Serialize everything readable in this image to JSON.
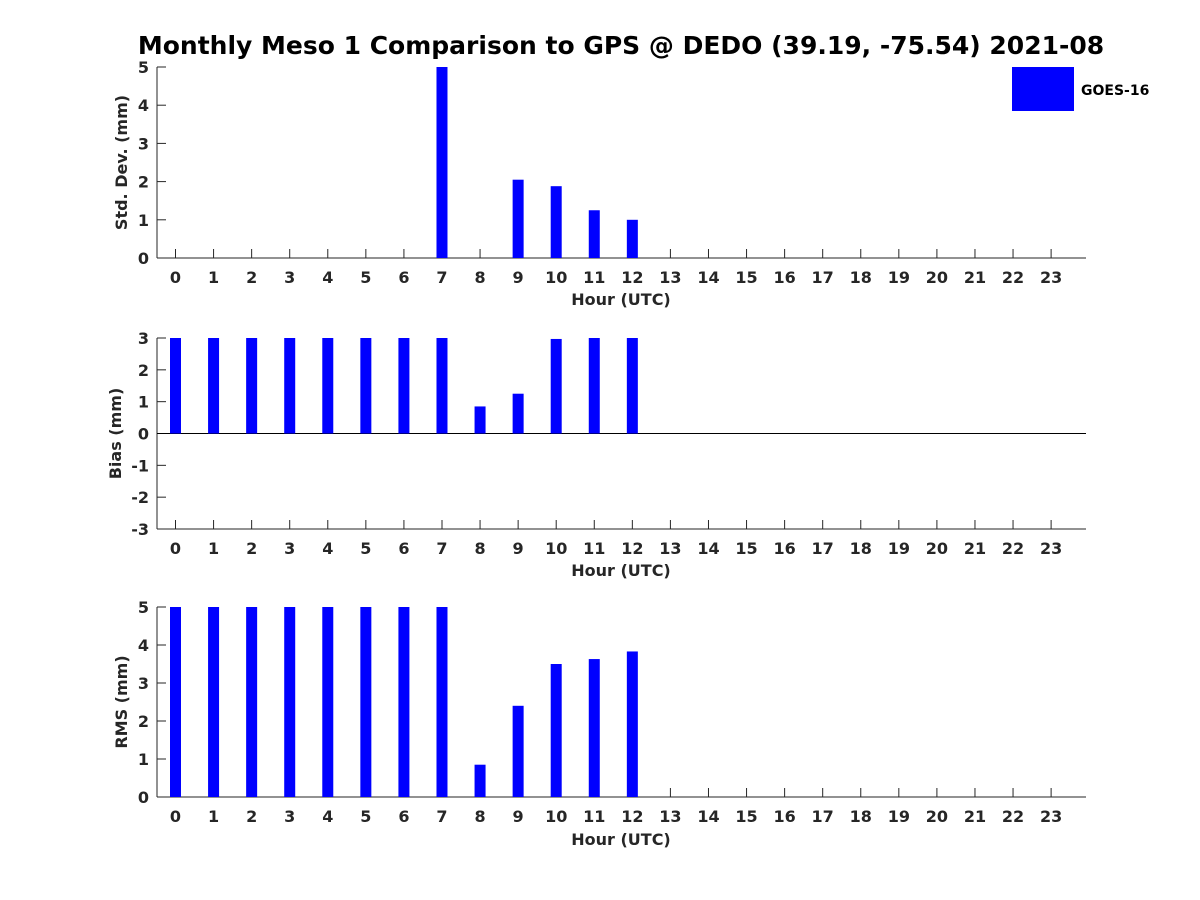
{
  "title": "Monthly Meso 1 Comparison to GPS @ DEDO (39.19, -75.54) 2021-08",
  "legend": {
    "label": "GOES-16",
    "color": "#0000FF",
    "placement": "top-right"
  },
  "bar_color": "#0000FF",
  "chart_data": [
    {
      "type": "bar",
      "series_name": "GOES-16",
      "xlabel": "Hour (UTC)",
      "ylabel": "Std. Dev. (mm)",
      "ylim": [
        0,
        5
      ],
      "yticks": [
        0,
        1,
        2,
        3,
        4,
        5
      ],
      "categories": [
        0,
        1,
        2,
        3,
        4,
        5,
        6,
        7,
        8,
        9,
        10,
        11,
        12,
        13,
        14,
        15,
        16,
        17,
        18,
        19,
        20,
        21,
        22,
        23
      ],
      "values": [
        null,
        null,
        null,
        null,
        null,
        null,
        null,
        5,
        null,
        2.05,
        1.88,
        1.25,
        1.0,
        null,
        null,
        null,
        null,
        null,
        null,
        null,
        null,
        null,
        null,
        null
      ],
      "grid": false
    },
    {
      "type": "bar",
      "series_name": "GOES-16",
      "xlabel": "Hour (UTC)",
      "ylabel": "Bias (mm)",
      "ylim": [
        -3,
        3
      ],
      "yticks": [
        -3,
        -2,
        -1,
        0,
        1,
        2,
        3
      ],
      "categories": [
        0,
        1,
        2,
        3,
        4,
        5,
        6,
        7,
        8,
        9,
        10,
        11,
        12,
        13,
        14,
        15,
        16,
        17,
        18,
        19,
        20,
        21,
        22,
        23
      ],
      "values": [
        3,
        3,
        3,
        3,
        3,
        3,
        3,
        3,
        0.85,
        1.25,
        2.97,
        3,
        3,
        null,
        null,
        null,
        null,
        null,
        null,
        null,
        null,
        null,
        null,
        null
      ],
      "grid": false,
      "zero_line": true
    },
    {
      "type": "bar",
      "series_name": "GOES-16",
      "xlabel": "Hour (UTC)",
      "ylabel": "RMS (mm)",
      "ylim": [
        0,
        5
      ],
      "yticks": [
        0,
        1,
        2,
        3,
        4,
        5
      ],
      "categories": [
        0,
        1,
        2,
        3,
        4,
        5,
        6,
        7,
        8,
        9,
        10,
        11,
        12,
        13,
        14,
        15,
        16,
        17,
        18,
        19,
        20,
        21,
        22,
        23
      ],
      "values": [
        5,
        5,
        5,
        5,
        5,
        5,
        5,
        5,
        0.85,
        2.4,
        3.5,
        3.63,
        3.83,
        null,
        null,
        null,
        null,
        null,
        null,
        null,
        null,
        null,
        null,
        null
      ],
      "grid": false
    }
  ]
}
